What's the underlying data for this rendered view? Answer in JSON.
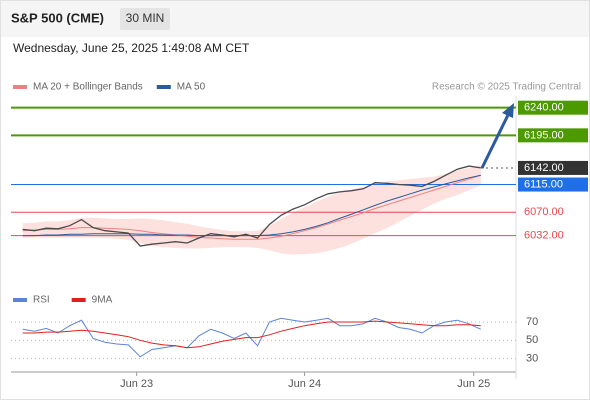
{
  "header": {
    "title": "S&P 500 (CME)",
    "timeframe": "30 MIN",
    "datetime": "Wednesday, June 25, 2025 1:49:08 AM CET",
    "credit": "Research © 2025 Trading Central"
  },
  "chart_data": [
    {
      "type": "price",
      "x": [
        1,
        2,
        3,
        4,
        5,
        6,
        7,
        8,
        9,
        10,
        11,
        12,
        13,
        14,
        15,
        16,
        17,
        18,
        19,
        20,
        21,
        22,
        23,
        24,
        25,
        26,
        27,
        28,
        29,
        30,
        31,
        32,
        33,
        34,
        35,
        36,
        37,
        38,
        39,
        40
      ],
      "close": [
        6042,
        6040,
        6044,
        6043,
        6048,
        6058,
        6045,
        6040,
        6038,
        6036,
        6015,
        6018,
        6020,
        6022,
        6020,
        6028,
        6035,
        6033,
        6030,
        6034,
        6028,
        6050,
        6065,
        6075,
        6082,
        6092,
        6100,
        6103,
        6105,
        6108,
        6118,
        6117,
        6115,
        6114,
        6112,
        6120,
        6130,
        6140,
        6145,
        6142
      ],
      "close_color": "#4a4a4a",
      "series": [
        {
          "name": "MA 20 + Bollinger Bands",
          "color": "#f08080",
          "band_color": "#fbd9d6",
          "values": [
            6040,
            6041,
            6042,
            6042,
            6043,
            6045,
            6045,
            6044,
            6043,
            6042,
            6040,
            6037,
            6035,
            6033,
            6031,
            6029,
            6028,
            6027,
            6026,
            6026,
            6026,
            6028,
            6031,
            6035,
            6040,
            6045,
            6051,
            6057,
            6063,
            6069,
            6076,
            6082,
            6088,
            6094,
            6100,
            6106,
            6112,
            6118,
            6124,
            6130
          ],
          "upper": [
            6052,
            6053,
            6055,
            6055,
            6057,
            6061,
            6061,
            6060,
            6059,
            6059,
            6060,
            6059,
            6057,
            6054,
            6051,
            6047,
            6044,
            6041,
            6039,
            6039,
            6040,
            6048,
            6059,
            6069,
            6078,
            6087,
            6095,
            6102,
            6107,
            6111,
            6116,
            6120,
            6122,
            6124,
            6126,
            6128,
            6132,
            6138,
            6142,
            6146
          ],
          "lower": [
            6028,
            6029,
            6029,
            6029,
            6029,
            6029,
            6029,
            6028,
            6027,
            6025,
            6020,
            6015,
            6013,
            6012,
            6011,
            6011,
            6012,
            6013,
            6013,
            6013,
            6012,
            6008,
            6003,
            6001,
            6002,
            6003,
            6007,
            6012,
            6019,
            6027,
            6036,
            6044,
            6054,
            6064,
            6074,
            6084,
            6092,
            6098,
            6106,
            6114
          ]
        },
        {
          "name": "MA 50",
          "color": "#2b5a9e",
          "values": [
            6032,
            6032,
            6033,
            6033,
            6034,
            6034,
            6035,
            6035,
            6035,
            6035,
            6034,
            6034,
            6033,
            6033,
            6033,
            6032,
            6032,
            6032,
            6032,
            6032,
            6032,
            6033,
            6035,
            6038,
            6042,
            6047,
            6053,
            6060,
            6067,
            6074,
            6081,
            6088,
            6094,
            6100,
            6106,
            6111,
            6116,
            6121,
            6126,
            6130
          ]
        }
      ],
      "levels": [
        {
          "value": 6240,
          "label": "6240.00",
          "color": "#4c9a00",
          "boxed": true,
          "width": 2
        },
        {
          "value": 6195,
          "label": "6195.00",
          "color": "#4c9a00",
          "boxed": true,
          "width": 2
        },
        {
          "value": 6142,
          "label": "6142.00",
          "color": "#333333",
          "boxed": true,
          "width": 1,
          "dotted": true
        },
        {
          "value": 6115,
          "label": "6115.00",
          "color": "#1e6fe8",
          "boxed": true,
          "width": 1
        },
        {
          "value": 6070,
          "label": "6070.00",
          "color": "#e8484f",
          "boxed": false,
          "width": 1
        },
        {
          "value": 6032,
          "label": "6032.00",
          "color": "#e8484f",
          "boxed": false,
          "width": 1
        }
      ],
      "xlim": [
        0,
        43
      ],
      "ylim": [
        5950,
        6259
      ],
      "xticks": [
        {
          "value": 10.7,
          "label": "Jun 23"
        },
        {
          "value": 25,
          "label": "Jun 24"
        },
        {
          "value": 39.4,
          "label": "Jun 25"
        }
      ]
    },
    {
      "type": "rsi",
      "x": [
        1,
        2,
        3,
        4,
        5,
        6,
        7,
        8,
        9,
        10,
        11,
        12,
        13,
        14,
        15,
        16,
        17,
        18,
        19,
        20,
        21,
        22,
        23,
        24,
        25,
        26,
        27,
        28,
        29,
        30,
        31,
        32,
        33,
        34,
        35,
        36,
        37,
        38,
        39,
        40
      ],
      "series": [
        {
          "name": "RSI",
          "color": "#5b84d6",
          "values": [
            62,
            60,
            63,
            58,
            66,
            72,
            52,
            48,
            46,
            45,
            32,
            40,
            42,
            44,
            42,
            55,
            62,
            58,
            52,
            58,
            44,
            70,
            74,
            72,
            70,
            72,
            74,
            66,
            66,
            68,
            74,
            70,
            64,
            62,
            58,
            66,
            70,
            72,
            68,
            62
          ]
        },
        {
          "name": "9MA",
          "color": "#e02020",
          "values": [
            58,
            58,
            59,
            59,
            60,
            61,
            60,
            58,
            56,
            54,
            50,
            47,
            45,
            44,
            42,
            43,
            46,
            49,
            51,
            53,
            53,
            56,
            60,
            63,
            66,
            68,
            70,
            70,
            70,
            70,
            71,
            70,
            69,
            68,
            67,
            66,
            66,
            67,
            67,
            66
          ]
        }
      ],
      "xlim": [
        0,
        43
      ],
      "ylim": [
        22,
        82
      ],
      "yticks": [
        30,
        50,
        70
      ]
    }
  ]
}
